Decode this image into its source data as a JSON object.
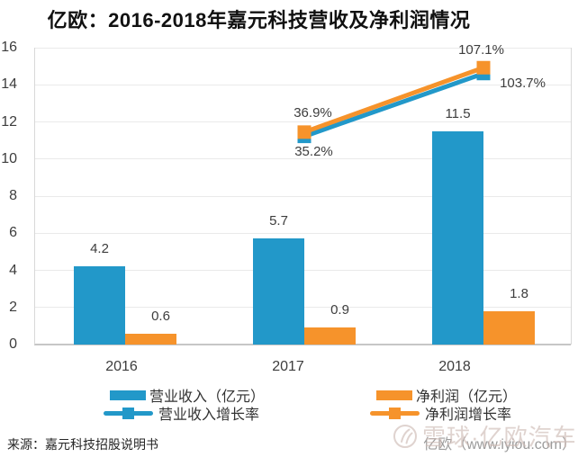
{
  "title": "亿欧：2016-2018年嘉元科技营收及净利润情况",
  "source_note": "来源：嘉元科技招股说明书",
  "watermark": {
    "site_credit": "亿欧（www.iyiou.com）",
    "overlay_text": "雪球·亿欧汽车"
  },
  "colors": {
    "revenue_blue": "#2298c9",
    "profit_orange": "#f6932b",
    "grid": "#eaeaea",
    "axis": "#c6c6c6",
    "label_text": "#3d3d3d",
    "watermark_gray": "#9b9b9b"
  },
  "legend": [
    {
      "label": "营业收入（亿元）",
      "type": "bar",
      "color": "#2298c9"
    },
    {
      "label": "净利润（亿元）",
      "type": "bar",
      "color": "#f6932b"
    },
    {
      "label": "营业收入增长率",
      "type": "line",
      "color": "#2298c9"
    },
    {
      "label": "净利润增长率",
      "type": "line",
      "color": "#f6932b"
    }
  ],
  "chart_data": {
    "type": "bar+line combo",
    "title": "亿欧：2016-2018年嘉元科技营收及净利润情况",
    "categories": [
      "2016",
      "2017",
      "2018"
    ],
    "ylim": [
      0,
      16
    ],
    "yticks": [
      0,
      2,
      4,
      6,
      8,
      10,
      12,
      14,
      16
    ],
    "grid": true,
    "legend_position": "bottom",
    "bar_series": [
      {
        "name": "营业收入（亿元）",
        "color": "#2298c9",
        "values": [
          4.2,
          5.7,
          11.5
        ],
        "labels": [
          "4.2",
          "5.7",
          "11.5"
        ]
      },
      {
        "name": "净利润（亿元）",
        "color": "#f6932b",
        "values": [
          0.6,
          0.9,
          1.8
        ],
        "labels": [
          "0.6",
          "0.9",
          "1.8"
        ]
      }
    ],
    "line_series": [
      {
        "name": "营业收入增长率",
        "color": "#2298c9",
        "values_pct": [
          null,
          35.2,
          103.7
        ],
        "labels": [
          null,
          "35.2%",
          "103.7%"
        ]
      },
      {
        "name": "净利润增长率",
        "color": "#f6932b",
        "values_pct": [
          null,
          36.9,
          107.1
        ],
        "labels": [
          null,
          "36.9%",
          "107.1%"
        ]
      }
    ]
  }
}
